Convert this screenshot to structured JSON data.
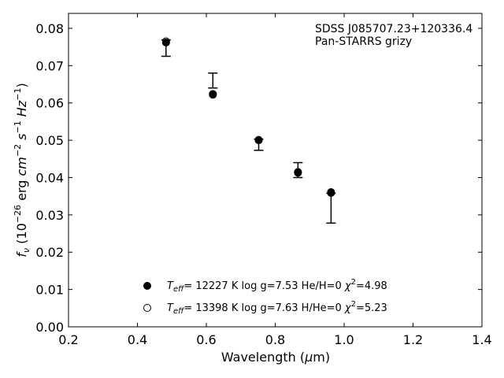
{
  "chart_data": {
    "type": "scatter",
    "xlabel_prefix": "Wavelength (",
    "xlabel_mu": "μ",
    "xlabel_suffix": "m)",
    "ylabel_f": "f",
    "ylabel_nu": "ν",
    "ylabel_open": " (10",
    "ylabel_exp1": "−26",
    "ylabel_erg": " erg ",
    "ylabel_cm": "cm",
    "ylabel_exp2": "−2",
    "ylabel_s": " s",
    "ylabel_exp3": "−1",
    "ylabel_hz": " Hz",
    "ylabel_exp4": "−1",
    "ylabel_close": ")",
    "xlim": [
      0.2,
      1.4
    ],
    "ylim": [
      0.0,
      0.084
    ],
    "xticks": [
      0.2,
      0.4,
      0.6,
      0.8,
      1.0,
      1.2,
      1.4
    ],
    "xtick_labels": [
      "0.2",
      "0.4",
      "0.6",
      "0.8",
      "1.0",
      "1.2",
      "1.4"
    ],
    "yticks": [
      0.0,
      0.01,
      0.02,
      0.03,
      0.04,
      0.05,
      0.06,
      0.07,
      0.08
    ],
    "ytick_labels": [
      "0.00",
      "0.01",
      "0.02",
      "0.03",
      "0.04",
      "0.05",
      "0.06",
      "0.07",
      "0.08"
    ],
    "annotation_line1": "SDSS J085707.23+120336.4",
    "annotation_line2": "Pan-STARRS grizy",
    "observed": [
      {
        "x": 0.483,
        "y": 0.0747,
        "err_low": 0.0022,
        "err_high": 0.0022
      },
      {
        "x": 0.619,
        "y": 0.066,
        "err_low": 0.002,
        "err_high": 0.002
      },
      {
        "x": 0.752,
        "y": 0.0488,
        "err_low": 0.0015,
        "err_high": 0.0015
      },
      {
        "x": 0.866,
        "y": 0.042,
        "err_low": 0.002,
        "err_high": 0.002
      },
      {
        "x": 0.962,
        "y": 0.0318,
        "err_low": 0.004,
        "err_high": 0.004
      }
    ],
    "series": [
      {
        "marker": "filled",
        "legend_teff": "T",
        "legend_teff_sub": "eff",
        "legend_rest": "= 12227 K  log g=7.53  He/H=0  ",
        "legend_chi": "χ",
        "legend_chi_sup": "2",
        "legend_chi_val": "=4.98",
        "points": [
          {
            "x": 0.483,
            "y": 0.0762
          },
          {
            "x": 0.619,
            "y": 0.0622
          },
          {
            "x": 0.752,
            "y": 0.05
          },
          {
            "x": 0.866,
            "y": 0.0413
          },
          {
            "x": 0.962,
            "y": 0.0359
          }
        ]
      },
      {
        "marker": "open",
        "legend_teff": "T",
        "legend_teff_sub": "eff",
        "legend_rest": "= 13398 K  log g=7.63  H/He=0  ",
        "legend_chi": "χ",
        "legend_chi_sup": "2",
        "legend_chi_val": "=5.23",
        "points": [
          {
            "x": 0.483,
            "y": 0.0765
          },
          {
            "x": 0.619,
            "y": 0.0624
          },
          {
            "x": 0.752,
            "y": 0.0501
          },
          {
            "x": 0.866,
            "y": 0.0415
          },
          {
            "x": 0.962,
            "y": 0.0361
          }
        ]
      }
    ]
  }
}
